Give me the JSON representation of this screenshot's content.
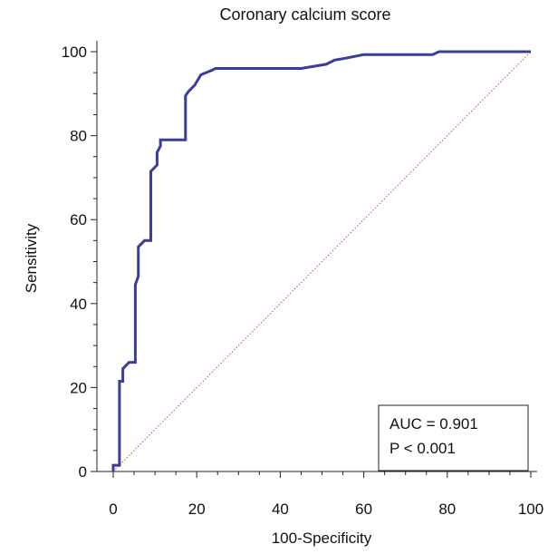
{
  "chart_data": {
    "type": "line",
    "title": "Coronary calcium score",
    "xlabel": "100-Specificity",
    "ylabel": "Sensitivity",
    "xlim": [
      0,
      100
    ],
    "ylim": [
      0,
      100
    ],
    "x_ticks": [
      "0",
      "20",
      "40",
      "60",
      "80",
      "100"
    ],
    "y_ticks": [
      "0",
      "20",
      "40",
      "60",
      "80",
      "100"
    ],
    "grid": false,
    "series": [
      {
        "color": "#3a3d9c",
        "style": "solid",
        "x": [
          0,
          0,
          1.5,
          1.5,
          2.3,
          2.3,
          3.8,
          5.3,
          5.3,
          6.0,
          6.0,
          7.5,
          9.0,
          9.0,
          10.5,
          10.5,
          11.3,
          11.3,
          12.0,
          13.5,
          15.0,
          16.5,
          17.3,
          17.3,
          18.0,
          19.5,
          21.0,
          23.5,
          24.5,
          26.5,
          30.0,
          35.0,
          40.0,
          45.0,
          51.0,
          53.0,
          56.0,
          60.0,
          76.5,
          78.0,
          100
        ],
        "y": [
          0,
          1.5,
          1.5,
          21.5,
          21.5,
          24.5,
          26.0,
          26.0,
          44.5,
          46.5,
          53.5,
          55.0,
          55.0,
          71.5,
          73.0,
          76.0,
          77.5,
          79.0,
          79.0,
          79.0,
          79.0,
          79.0,
          79.0,
          89.5,
          90.5,
          92.0,
          94.5,
          95.5,
          96.0,
          96.0,
          96.0,
          96.0,
          96.0,
          96.0,
          97.0,
          98.0,
          98.5,
          99.3,
          99.3,
          100,
          100
        ]
      },
      {
        "color": "#d64545",
        "style": "dotted",
        "x": [
          0,
          100
        ],
        "y": [
          0,
          100
        ]
      }
    ],
    "annotation": {
      "lines": [
        "AUC = 0.901",
        "P < 0.001"
      ]
    }
  }
}
